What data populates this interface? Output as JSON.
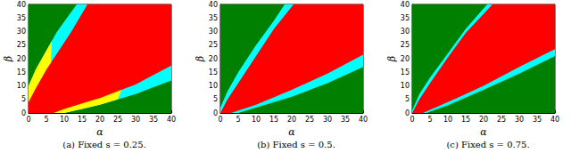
{
  "chart_data": [
    {
      "type": "area",
      "title": "(a) Fixed s = 0.25.",
      "x_label": "α",
      "y_label": "β",
      "xlim": [
        0,
        40
      ],
      "ylim": [
        0,
        40
      ],
      "xticks": [
        0,
        5,
        10,
        15,
        20,
        25,
        30,
        35,
        40
      ],
      "yticks": [
        0,
        5,
        10,
        15,
        20,
        25,
        30,
        35,
        40
      ],
      "regions": [
        {
          "color": "#008000",
          "points": [
            [
              0,
              0
            ],
            [
              40,
              0
            ],
            [
              40,
              40
            ],
            [
              0,
              40
            ]
          ]
        },
        {
          "color": "#00ffff",
          "points": [
            [
              0,
              0
            ],
            [
              0,
              10
            ],
            [
              2,
              16
            ],
            [
              5,
              23
            ],
            [
              8,
              30
            ],
            [
              11,
              35.5
            ],
            [
              13.5,
              40
            ],
            [
              40,
              40
            ],
            [
              40,
              12
            ],
            [
              35,
              9.5
            ],
            [
              30,
              7
            ],
            [
              25,
              5
            ],
            [
              20,
              3
            ],
            [
              15,
              1.5
            ],
            [
              10,
              0
            ]
          ]
        },
        {
          "color": "#ffff00",
          "points": [
            [
              0,
              0
            ],
            [
              0,
              10
            ],
            [
              2,
              16
            ],
            [
              5,
              23
            ],
            [
              6.5,
              26.5
            ],
            [
              6,
              10
            ],
            [
              3,
              0
            ]
          ]
        },
        {
          "color": "#ffff00",
          "points": [
            [
              7,
              0
            ],
            [
              10,
              0
            ],
            [
              15,
              1.5
            ],
            [
              20,
              3
            ],
            [
              25,
              5
            ],
            [
              26,
              8.5
            ],
            [
              20,
              8
            ],
            [
              10,
              4
            ]
          ]
        },
        {
          "color": "#ff0000",
          "points": [
            [
              0,
              0
            ],
            [
              0,
              4
            ],
            [
              2,
              9
            ],
            [
              5,
              16
            ],
            [
              8,
              22
            ],
            [
              12,
              30
            ],
            [
              16.5,
              40
            ],
            [
              40,
              40
            ],
            [
              40,
              17.5
            ],
            [
              35,
              14
            ],
            [
              30,
              10.5
            ],
            [
              25,
              8
            ],
            [
              20,
              5.5
            ],
            [
              15,
              3.5
            ],
            [
              10,
              1.5
            ],
            [
              7,
              0
            ]
          ]
        }
      ]
    },
    {
      "type": "area",
      "title": "(b) Fixed s = 0.5.",
      "x_label": "α",
      "y_label": "β",
      "xlim": [
        0,
        40
      ],
      "ylim": [
        0,
        40
      ],
      "xticks": [
        0,
        5,
        10,
        15,
        20,
        25,
        30,
        35,
        40
      ],
      "yticks": [
        0,
        5,
        10,
        15,
        20,
        25,
        30,
        35,
        40
      ],
      "regions": [
        {
          "color": "#008000",
          "points": [
            [
              0,
              0
            ],
            [
              40,
              0
            ],
            [
              40,
              40
            ],
            [
              0,
              40
            ]
          ]
        },
        {
          "color": "#00ffff",
          "points": [
            [
              0,
              0
            ],
            [
              0,
              2
            ],
            [
              2,
              8
            ],
            [
              5,
              15
            ],
            [
              10,
              25
            ],
            [
              15,
              34
            ],
            [
              18,
              40
            ],
            [
              40,
              40
            ],
            [
              40,
              17
            ],
            [
              30,
              11
            ],
            [
              20,
              6
            ],
            [
              10,
              2
            ],
            [
              5,
              0
            ]
          ]
        },
        {
          "color": "#ff0000",
          "points": [
            [
              0,
              0
            ],
            [
              2,
              5
            ],
            [
              5,
              11
            ],
            [
              10,
              21
            ],
            [
              15,
              31
            ],
            [
              20.5,
              40
            ],
            [
              40,
              40
            ],
            [
              40,
              21.5
            ],
            [
              30,
              14.5
            ],
            [
              20,
              8.5
            ],
            [
              10,
              3
            ],
            [
              3,
              0
            ]
          ]
        }
      ]
    },
    {
      "type": "area",
      "title": "(c) Fixed s = 0.75.",
      "x_label": "α",
      "y_label": "β",
      "xlim": [
        0,
        40
      ],
      "ylim": [
        0,
        40
      ],
      "xticks": [
        0,
        5,
        10,
        15,
        20,
        25,
        30,
        35,
        40
      ],
      "yticks": [
        0,
        5,
        10,
        15,
        20,
        25,
        30,
        35,
        40
      ],
      "regions": [
        {
          "color": "#008000",
          "points": [
            [
              0,
              0
            ],
            [
              40,
              0
            ],
            [
              40,
              40
            ],
            [
              0,
              40
            ]
          ]
        },
        {
          "color": "#00ffff",
          "points": [
            [
              0,
              0
            ],
            [
              0,
              1
            ],
            [
              2,
              7
            ],
            [
              5,
              13
            ],
            [
              10,
              22
            ],
            [
              15,
              31
            ],
            [
              20,
              38.5
            ],
            [
              21,
              40
            ],
            [
              40,
              40
            ],
            [
              40,
              21
            ],
            [
              30,
              14.5
            ],
            [
              20,
              8.5
            ],
            [
              10,
              2.8
            ],
            [
              4,
              0
            ]
          ]
        },
        {
          "color": "#ff0000",
          "points": [
            [
              0,
              0
            ],
            [
              2,
              5
            ],
            [
              5,
              11
            ],
            [
              10,
              20.5
            ],
            [
              15,
              29.5
            ],
            [
              22.5,
              40
            ],
            [
              40,
              40
            ],
            [
              40,
              23.5
            ],
            [
              30,
              17
            ],
            [
              20,
              10
            ],
            [
              10,
              4
            ],
            [
              3,
              0
            ]
          ]
        }
      ]
    }
  ]
}
